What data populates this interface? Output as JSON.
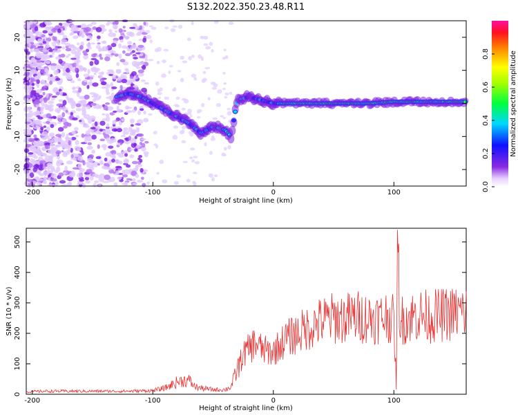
{
  "title": "S132.2022.350.23.48.R11",
  "chart_data": [
    {
      "type": "heatmap",
      "xlabel": "Height of straight line (km)",
      "ylabel": "Frequency (Hz)",
      "xlim": [
        -205,
        160
      ],
      "ylim": [
        -25,
        25
      ],
      "xticks": [
        -200,
        -100,
        0,
        100
      ],
      "yticks": [
        -20,
        -10,
        0,
        10,
        20
      ],
      "colorbar": {
        "label": "Normalized spectral amplitude",
        "ticks": [
          0.0,
          0.2,
          0.4,
          0.6,
          0.8
        ],
        "range": [
          0,
          1
        ],
        "colormap": "rainbow (white-violet-blue-cyan-green-yellow-red-magenta)"
      },
      "ridge": {
        "x": [
          -130,
          -120,
          -110,
          -100,
          -90,
          -80,
          -70,
          -60,
          -50,
          -40,
          -35,
          -30,
          -20,
          -10,
          0,
          10,
          20,
          40,
          60,
          80,
          100,
          120,
          140,
          160
        ],
        "y": [
          2,
          3,
          2,
          0,
          -2,
          -4,
          -6,
          -9,
          -7,
          -8,
          -10,
          1,
          2,
          1,
          0,
          0,
          0,
          0,
          0,
          0,
          0.5,
          0.5,
          0.5,
          0.5
        ]
      }
    },
    {
      "type": "line",
      "xlabel": "Height of straight line (km)",
      "ylabel": "SNR (10 * v/v)",
      "xlim": [
        -205,
        160
      ],
      "ylim": [
        0,
        545
      ],
      "xticks": [
        -200,
        -100,
        0,
        100
      ],
      "yticks": [
        0,
        100,
        200,
        300,
        400,
        500
      ],
      "series": [
        {
          "color": "#e83030",
          "x": [
            -205,
            -190,
            -180,
            -160,
            -140,
            -120,
            -100,
            -90,
            -85,
            -80,
            -75,
            -70,
            -65,
            -60,
            -50,
            -40,
            -35,
            -30,
            -25,
            -20,
            -15,
            -10,
            -5,
            0,
            10,
            20,
            30,
            40,
            50,
            60,
            70,
            80,
            90,
            95,
            100,
            102,
            103,
            105,
            110,
            120,
            130,
            140,
            150,
            160
          ],
          "y": [
            8,
            10,
            10,
            10,
            10,
            10,
            12,
            20,
            30,
            40,
            45,
            45,
            25,
            20,
            15,
            15,
            25,
            80,
            130,
            150,
            170,
            150,
            140,
            140,
            180,
            200,
            220,
            240,
            250,
            250,
            255,
            250,
            250,
            260,
            240,
            30,
            540,
            240,
            250,
            260,
            255,
            260,
            265,
            270
          ]
        }
      ]
    }
  ],
  "colors": {
    "line": "#e83030",
    "axis": "#000000"
  }
}
